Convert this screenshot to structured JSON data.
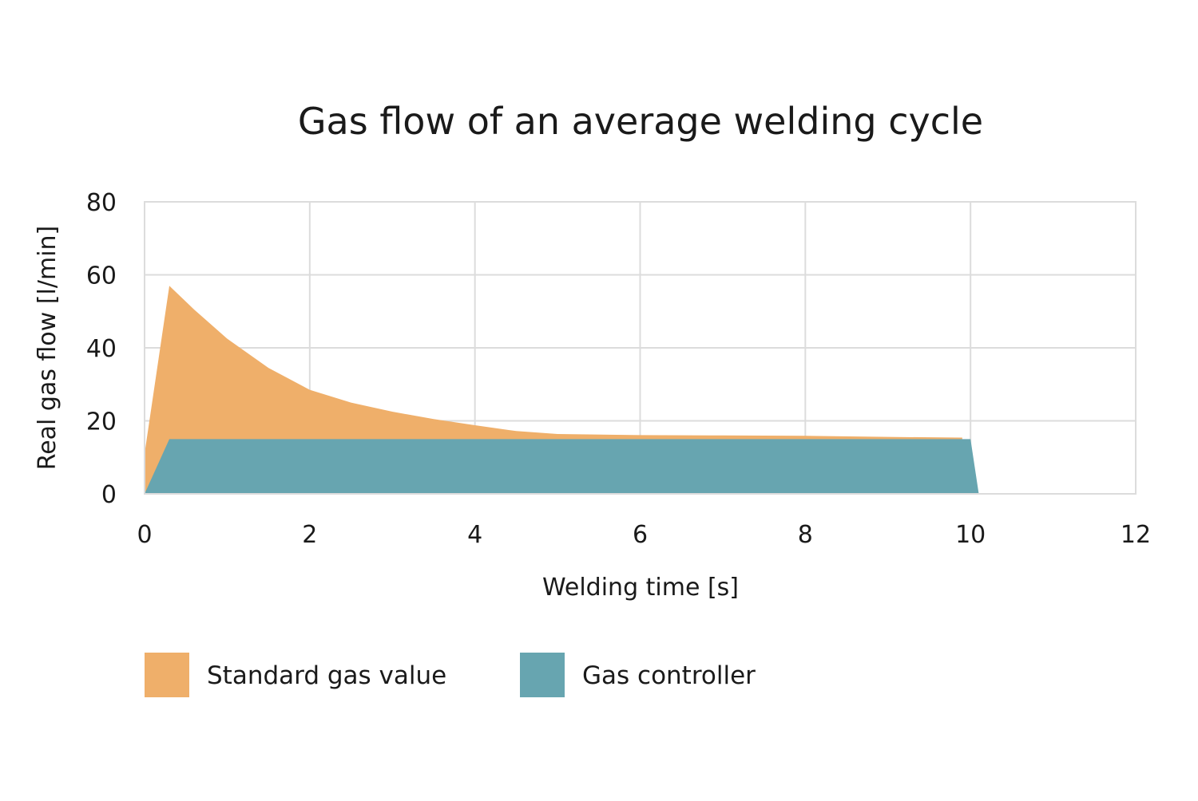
{
  "chart_data": {
    "type": "area",
    "title": "Gas flow of an average welding cycle",
    "xlabel": "Welding time [s]",
    "ylabel": "Real gas flow [l/min]",
    "xlim": [
      0,
      12
    ],
    "ylim": [
      0,
      80
    ],
    "x_ticks": [
      "0",
      "2",
      "4",
      "6",
      "8",
      "10",
      "12"
    ],
    "y_ticks": [
      "0",
      "20",
      "40",
      "60",
      "80"
    ],
    "grid": true,
    "legend_position": "bottom",
    "series": [
      {
        "name": "Standard gas value",
        "color": "#EFAF6A",
        "points": [
          [
            0,
            0
          ],
          [
            0,
            11
          ],
          [
            0.3,
            57
          ],
          [
            0.6,
            50.5
          ],
          [
            1.0,
            42.5
          ],
          [
            1.5,
            34.5
          ],
          [
            2.0,
            28.5
          ],
          [
            2.5,
            25
          ],
          [
            3.0,
            22.5
          ],
          [
            3.5,
            20.5
          ],
          [
            4.0,
            18.8
          ],
          [
            4.5,
            17.2
          ],
          [
            5.0,
            16.4
          ],
          [
            6.0,
            16.1
          ],
          [
            7.0,
            16.0
          ],
          [
            8.0,
            15.9
          ],
          [
            9.0,
            15.6
          ],
          [
            9.9,
            15.4
          ],
          [
            9.9,
            0
          ]
        ]
      },
      {
        "name": "Gas controller",
        "color": "#67A5B0",
        "points": [
          [
            0,
            0
          ],
          [
            0.3,
            15
          ],
          [
            10.0,
            15
          ],
          [
            10.1,
            0
          ]
        ]
      }
    ]
  }
}
